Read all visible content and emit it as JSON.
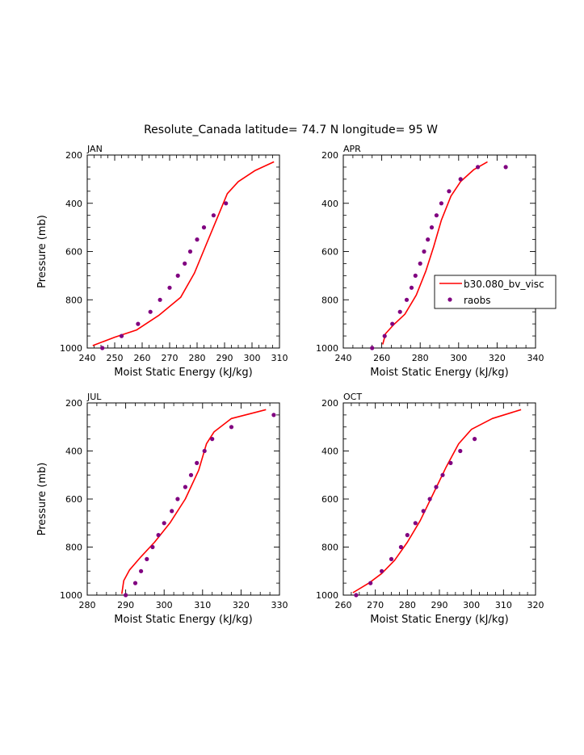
{
  "title": "Resolute_Canada  latitude= 74.7 N longitude= 95 W",
  "colors": {
    "model": "#ff0000",
    "obs": "#800080",
    "axis": "#000000"
  },
  "legend": {
    "model_label": "b30.080_bv_visc",
    "obs_label": "raobs",
    "panel": "APR",
    "placement": "right-middle"
  },
  "chart_data": [
    {
      "type": "line",
      "panel_label": "JAN",
      "xlabel": "Moist Static Energy (kJ/kg)",
      "ylabel": "Pressure (mb)",
      "xlim": [
        240,
        310
      ],
      "xticks": [
        240,
        250,
        260,
        270,
        280,
        290,
        300,
        310
      ],
      "ylim": [
        1000,
        200
      ],
      "yticks": [
        1000,
        800,
        600,
        400,
        200
      ],
      "series": [
        {
          "name": "b30.080_bv_visc",
          "style": "line",
          "x": [
            242,
            250,
            258,
            266,
            274,
            279,
            283,
            287,
            291,
            295,
            301,
            308
          ],
          "y": [
            990,
            955,
            925,
            865,
            790,
            690,
            580,
            470,
            360,
            310,
            265,
            228
          ]
        },
        {
          "name": "raobs",
          "style": "points",
          "x": [
            245.5,
            252.5,
            258.5,
            263.0,
            266.5,
            270.0,
            273.0,
            275.5,
            277.5,
            280.0,
            282.5,
            286.0,
            290.5
          ],
          "y": [
            1000,
            950,
            900,
            850,
            800,
            750,
            700,
            650,
            600,
            550,
            500,
            450,
            400
          ]
        }
      ]
    },
    {
      "type": "line",
      "panel_label": "APR",
      "xlabel": "Moist Static Energy (kJ/kg)",
      "ylabel": "",
      "xlim": [
        240,
        340
      ],
      "xticks": [
        240,
        260,
        280,
        300,
        320,
        340
      ],
      "ylim": [
        1000,
        200
      ],
      "yticks": [
        1000,
        800,
        600,
        400,
        200
      ],
      "series": [
        {
          "name": "b30.080_bv_visc",
          "style": "line",
          "x": [
            260.5,
            262,
            266,
            272,
            278,
            283,
            287,
            291,
            296,
            301,
            308,
            315
          ],
          "y": [
            985,
            940,
            905,
            860,
            780,
            680,
            580,
            470,
            370,
            310,
            260,
            228
          ]
        },
        {
          "name": "raobs",
          "style": "points",
          "x": [
            255.0,
            261.5,
            265.5,
            269.5,
            273.0,
            275.5,
            277.5,
            280.0,
            282.0,
            284.0,
            286.0,
            288.5,
            291.0,
            295.0,
            301.0,
            310.0,
            324.5
          ],
          "y": [
            1000,
            950,
            900,
            850,
            800,
            750,
            700,
            650,
            600,
            550,
            500,
            450,
            400,
            350,
            300,
            250,
            250
          ]
        }
      ]
    },
    {
      "type": "line",
      "panel_label": "JUL",
      "xlabel": "Moist Static Energy (kJ/kg)",
      "ylabel": "Pressure (mb)",
      "xlim": [
        280,
        330
      ],
      "xticks": [
        280,
        290,
        300,
        310,
        320,
        330
      ],
      "ylim": [
        1000,
        200
      ],
      "yticks": [
        1000,
        800,
        600,
        400,
        200
      ],
      "series": [
        {
          "name": "b30.080_bv_visc",
          "style": "line",
          "x": [
            289,
            289.5,
            291,
            294,
            297.5,
            301.5,
            305.5,
            309,
            311,
            313,
            317.5,
            326.5
          ],
          "y": [
            995,
            940,
            895,
            840,
            780,
            700,
            600,
            480,
            370,
            320,
            265,
            228
          ]
        },
        {
          "name": "raobs",
          "style": "points",
          "x": [
            290.0,
            292.5,
            294.0,
            295.5,
            297.0,
            298.5,
            300.0,
            302.0,
            303.5,
            305.5,
            307.0,
            308.5,
            310.5,
            312.5,
            317.5,
            328.5
          ],
          "y": [
            1000,
            950,
            900,
            850,
            800,
            750,
            700,
            650,
            600,
            550,
            500,
            450,
            400,
            350,
            300,
            250
          ]
        }
      ]
    },
    {
      "type": "line",
      "panel_label": "OCT",
      "xlabel": "Moist Static Energy (kJ/kg)",
      "ylabel": "",
      "xlim": [
        260,
        320
      ],
      "xticks": [
        260,
        270,
        280,
        290,
        300,
        310,
        320
      ],
      "ylim": [
        1000,
        200
      ],
      "yticks": [
        1000,
        800,
        600,
        400,
        200
      ],
      "series": [
        {
          "name": "b30.080_bv_visc",
          "style": "line",
          "x": [
            263,
            268,
            272,
            276,
            280,
            284,
            288,
            292,
            296,
            300,
            306.5,
            315.5
          ],
          "y": [
            990,
            950,
            910,
            855,
            780,
            690,
            580,
            470,
            370,
            310,
            265,
            228
          ]
        },
        {
          "name": "raobs",
          "style": "points",
          "x": [
            264.0,
            268.5,
            272.0,
            275.0,
            278.0,
            280.0,
            282.5,
            285.0,
            287.0,
            289.0,
            291.0,
            293.5,
            296.5,
            301.0
          ],
          "y": [
            1000,
            950,
            900,
            850,
            800,
            750,
            700,
            650,
            600,
            550,
            500,
            450,
            400,
            350
          ]
        }
      ]
    }
  ]
}
